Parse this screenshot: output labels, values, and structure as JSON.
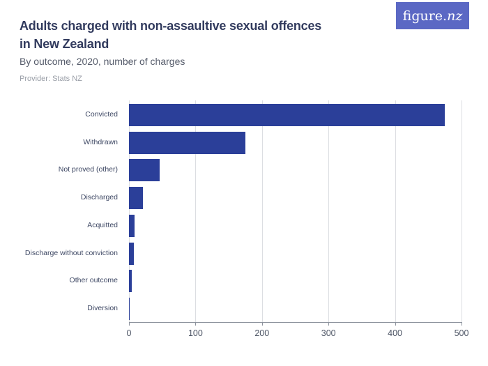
{
  "header": {
    "title_lines": [
      "Adults charged with non-assaultive sexual offences",
      "in New Zealand"
    ],
    "subtitle": "By outcome, 2020, number of charges",
    "provider": "Provider: Stats NZ",
    "logo_main": "figure.",
    "logo_suffix": "nz"
  },
  "colors": {
    "bar": "#2b3f99",
    "logo_bg": "#5b68c4",
    "title_text": "#323b5e",
    "subtitle_text": "#565c6b",
    "provider_text": "#989da6",
    "gridline": "#dcdee2",
    "axis": "#8c929d",
    "tick_label": "#4d5565",
    "category_label": "#3d4763"
  },
  "chart_data": {
    "type": "bar",
    "orientation": "horizontal",
    "title": "Adults charged with non-assaultive sexual offences in New Zealand",
    "subtitle": "By outcome, 2020, number of charges",
    "categories": [
      "Convicted",
      "Withdrawn",
      "Not proved (other)",
      "Discharged",
      "Acquitted",
      "Discharge without conviction",
      "Other outcome",
      "Diversion"
    ],
    "values": [
      475,
      175,
      46,
      21,
      8,
      7,
      4,
      1
    ],
    "xlabel": "",
    "ylabel": "",
    "xlim": [
      0,
      500
    ],
    "xticks": [
      0,
      100,
      200,
      300,
      400,
      500
    ],
    "grid": true,
    "legend": false
  }
}
